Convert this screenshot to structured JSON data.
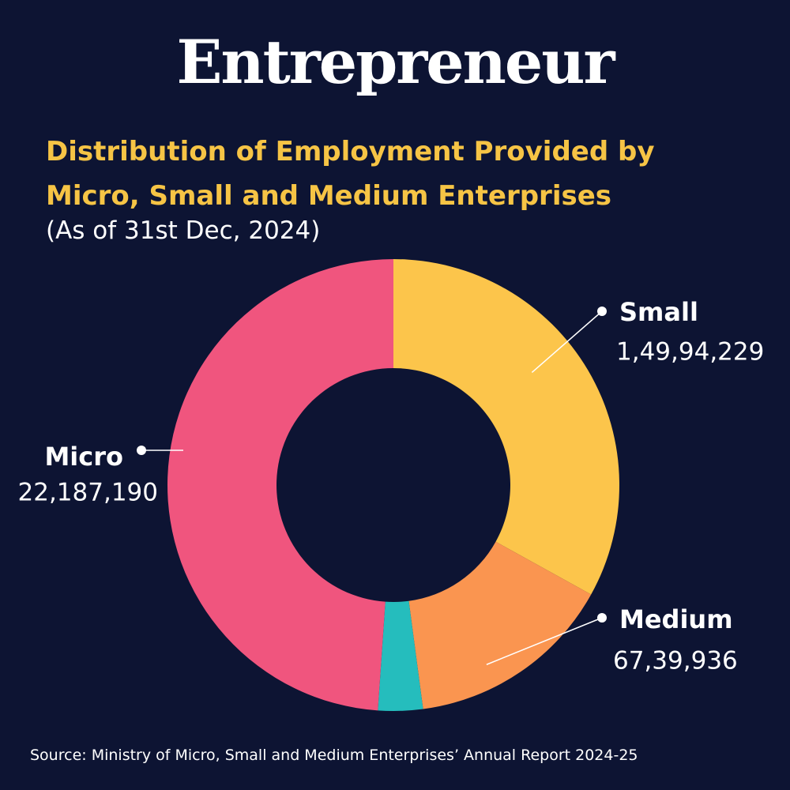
{
  "brand": "Entrepreneur",
  "header": {
    "title_line1": "Distribution of Employment Provided by",
    "title_line2": "Micro, Small and Medium Enterprises",
    "subtitle": "(As of 31st Dec, 2024)"
  },
  "chart_data": {
    "type": "pie",
    "slices": [
      {
        "name": "Small",
        "value": 14994229,
        "value_label": "1,49,94,229",
        "color": "#fcc54b"
      },
      {
        "name": "Medium",
        "value": 6739936,
        "value_label": "67,39,936",
        "color": "#fa9550"
      },
      {
        "name": "",
        "value": 1450000,
        "value_label": "",
        "color": "#25bdbd"
      },
      {
        "name": "Micro",
        "value": 22187190,
        "value_label": "22,187,190",
        "color": "#f0557e"
      }
    ]
  },
  "source": "Source: Ministry of Micro, Small and Medium Enterprises’ Annual Report 2024-25"
}
